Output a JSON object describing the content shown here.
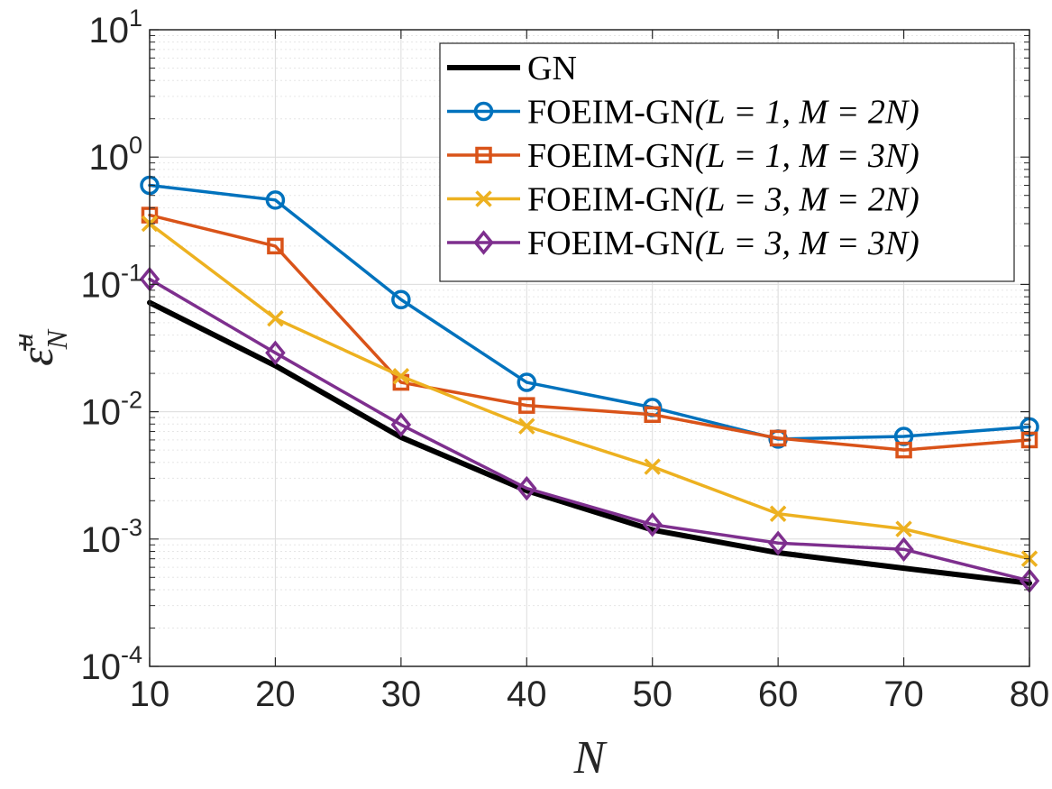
{
  "chart_data": {
    "type": "line",
    "x": [
      10,
      20,
      30,
      40,
      50,
      60,
      70,
      80
    ],
    "xlabel": "N",
    "ylabel_main": "ε̄",
    "ylabel_sup": "u",
    "ylabel_sub": "N",
    "xlim": [
      10,
      80
    ],
    "ylim": [
      0.0001,
      10
    ],
    "yscale": "log",
    "xticks": [
      "10",
      "20",
      "30",
      "40",
      "50",
      "60",
      "70",
      "80"
    ],
    "yticks": [
      {
        "base": "10",
        "exp": "-4"
      },
      {
        "base": "10",
        "exp": "-3"
      },
      {
        "base": "10",
        "exp": "-2"
      },
      {
        "base": "10",
        "exp": "-1"
      },
      {
        "base": "10",
        "exp": "0"
      },
      {
        "base": "10",
        "exp": "1"
      }
    ],
    "grid": true,
    "legend_position": "top-right",
    "series": [
      {
        "name": "GN",
        "label_main": "GN",
        "label_math": "",
        "color": "#000000",
        "marker": "none",
        "values": [
          0.072,
          0.023,
          0.0063,
          0.0024,
          0.00118,
          0.00078,
          0.00059,
          0.00045
        ]
      },
      {
        "name": "FOEIM-GN(L = 1, M = 2N)",
        "label_main": "FOEIM-GN",
        "label_math": "(L = 1, M = 2N)",
        "color": "#0072BD",
        "marker": "circle",
        "values": [
          0.6,
          0.46,
          0.076,
          0.017,
          0.0108,
          0.0061,
          0.0064,
          0.0076
        ]
      },
      {
        "name": "FOEIM-GN(L = 1, M = 3N)",
        "label_main": "FOEIM-GN",
        "label_math": "(L = 1, M = 3N)",
        "color": "#D95319",
        "marker": "square",
        "values": [
          0.35,
          0.2,
          0.017,
          0.0112,
          0.0095,
          0.0062,
          0.005,
          0.006
        ]
      },
      {
        "name": "FOEIM-GN(L = 3, M = 2N)",
        "label_main": "FOEIM-GN",
        "label_math": "(L = 3, M = 2N)",
        "color": "#EDB120",
        "marker": "x",
        "values": [
          0.3,
          0.054,
          0.019,
          0.0077,
          0.0037,
          0.00158,
          0.0012,
          0.0007
        ]
      },
      {
        "name": "FOEIM-GN(L = 3, M = 3N)",
        "label_main": "FOEIM-GN",
        "label_math": "(L = 3, M = 3N)",
        "color": "#7E2F8E",
        "marker": "diamond",
        "values": [
          0.11,
          0.029,
          0.0079,
          0.0025,
          0.0013,
          0.00093,
          0.00083,
          0.00047
        ]
      }
    ]
  }
}
